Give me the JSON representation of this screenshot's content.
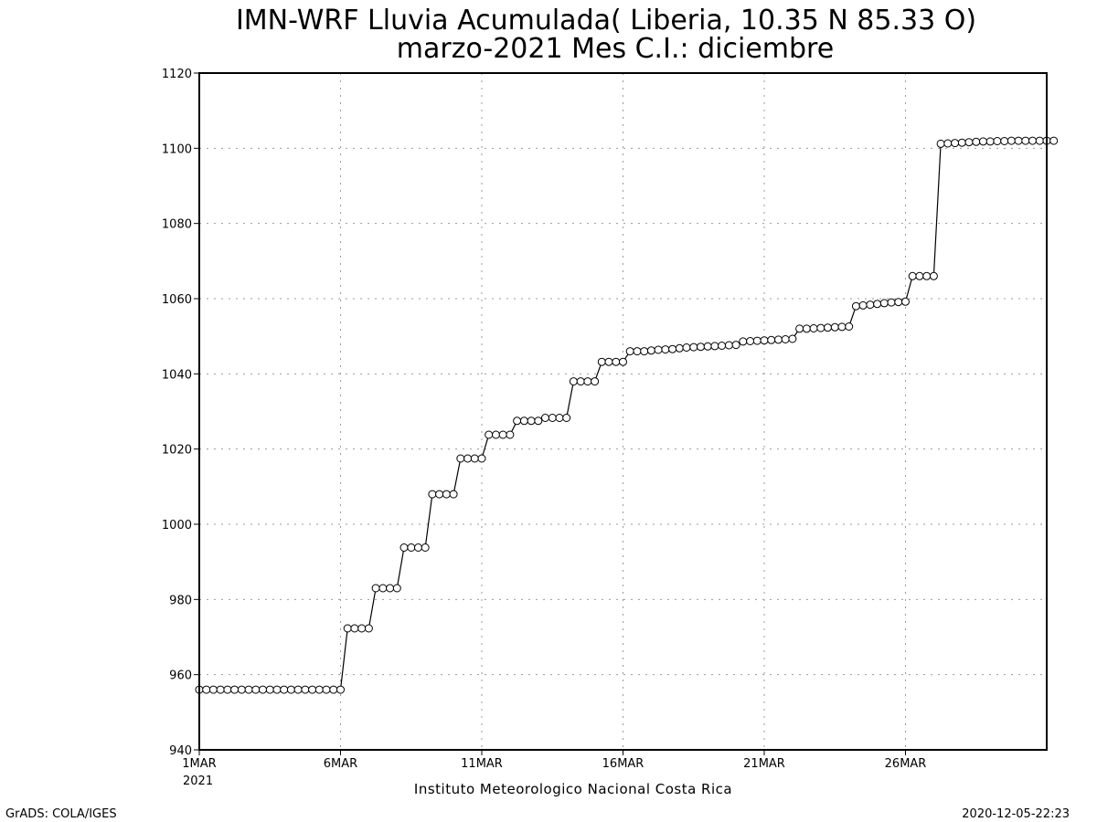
{
  "chart_data": {
    "type": "line",
    "title": "IMN-WRF  Lluvia Acumulada( Liberia, 10.35  N 85.33  O)",
    "subtitle": "marzo-2021 Mes C.I.: diciembre",
    "xlabel": "Instituto Meteorologico Nacional Costa Rica",
    "ylabel": "",
    "ylim": [
      940,
      1120
    ],
    "y_ticks": [
      "940",
      "960",
      "980",
      "1000",
      "1020",
      "1040",
      "1060",
      "1080",
      "1100",
      "1120"
    ],
    "x_ticks": [
      "1MAR",
      "6MAR",
      "11MAR",
      "16MAR",
      "21MAR",
      "26MAR"
    ],
    "x_tick_days": [
      1,
      6,
      11,
      16,
      21,
      26
    ],
    "x_year_label": "2021",
    "xlim_days": [
      1,
      31
    ],
    "grid": true,
    "step_days": 0.25,
    "series": [
      {
        "values": [
          956,
          956,
          956,
          956,
          956,
          956,
          956,
          956,
          956,
          956,
          956,
          956,
          956,
          956,
          956,
          956,
          956,
          956,
          956,
          956,
          956,
          972.3,
          972.3,
          972.3,
          972.3,
          983,
          983,
          983,
          983,
          993.8,
          993.8,
          993.8,
          993.8,
          1008,
          1008,
          1008,
          1008,
          1017.5,
          1017.5,
          1017.5,
          1017.5,
          1023.8,
          1023.8,
          1023.8,
          1023.8,
          1027.5,
          1027.5,
          1027.5,
          1027.5,
          1028.3,
          1028.3,
          1028.3,
          1028.3,
          1038,
          1038,
          1038,
          1038,
          1043.2,
          1043.2,
          1043.2,
          1043.2,
          1046,
          1046,
          1046,
          1046.2,
          1046.4,
          1046.5,
          1046.6,
          1046.8,
          1047,
          1047.1,
          1047.2,
          1047.3,
          1047.4,
          1047.5,
          1047.6,
          1047.7,
          1048.6,
          1048.7,
          1048.8,
          1048.9,
          1049,
          1049.1,
          1049.2,
          1049.3,
          1052,
          1052,
          1052.1,
          1052.2,
          1052.3,
          1052.4,
          1052.5,
          1052.6,
          1058,
          1058.2,
          1058.4,
          1058.6,
          1058.8,
          1059,
          1059.1,
          1059.2,
          1066,
          1066,
          1066,
          1066,
          1101.2,
          1101.3,
          1101.4,
          1101.5,
          1101.6,
          1101.7,
          1101.8,
          1101.8,
          1101.9,
          1101.9,
          1102,
          1102,
          1102,
          1102,
          1102,
          1102,
          1102
        ]
      }
    ]
  },
  "footer": {
    "left": "GrADS: COLA/IGES",
    "right": "2020-12-05-22:23"
  }
}
